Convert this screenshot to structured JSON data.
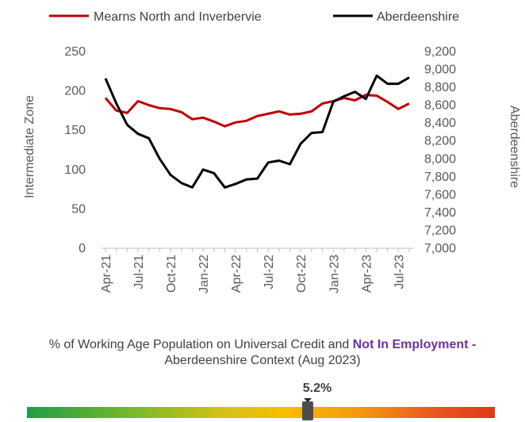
{
  "chart_data": {
    "type": "line",
    "legend": "top",
    "left_axis": {
      "label": "Intermediate Zone",
      "ylim": [
        0,
        250
      ],
      "ticks": [
        "0",
        "50",
        "100",
        "150",
        "200",
        "250"
      ]
    },
    "right_axis": {
      "label": "Aberdeenshire",
      "ylim": [
        7000,
        9200
      ],
      "ticks": [
        "7,000",
        "7,200",
        "7,400",
        "7,600",
        "7,800",
        "8,000",
        "8,200",
        "8,400",
        "8,600",
        "8,800",
        "9,000",
        "9,200"
      ]
    },
    "x_tick_labels": [
      "Apr-21",
      "Jul-21",
      "Oct-21",
      "Jan-22",
      "Apr-22",
      "Jul-22",
      "Oct-22",
      "Jan-23",
      "Apr-23",
      "Jul-23"
    ],
    "x_points": 29,
    "series": [
      {
        "name": "Mearns North and Inverbervie",
        "axis": "left",
        "color": "#c00000",
        "values": [
          191,
          175,
          172,
          187,
          182,
          178,
          177,
          173,
          164,
          166,
          161,
          155,
          160,
          162,
          168,
          171,
          174,
          170,
          171,
          174,
          184,
          187,
          191,
          188,
          195,
          194,
          186,
          177,
          184
        ]
      },
      {
        "name": "Aberdeenshire",
        "axis": "right",
        "color": "#000000",
        "values": [
          8900,
          8620,
          8380,
          8280,
          8230,
          8000,
          7820,
          7730,
          7680,
          7880,
          7840,
          7680,
          7720,
          7770,
          7780,
          7960,
          7980,
          7940,
          8170,
          8290,
          8300,
          8640,
          8700,
          8750,
          8670,
          8930,
          8840,
          8840,
          8910
        ]
      }
    ]
  },
  "context": {
    "caption_part1": "% of Working Age Population on Universal Credit and ",
    "caption_highlight": "Not In Employment",
    "caption_dash": " - ",
    "caption_part2": "Aberdeenshire Context (Aug 2023)",
    "value_label": "5.2%",
    "marker_position": 0.6
  }
}
